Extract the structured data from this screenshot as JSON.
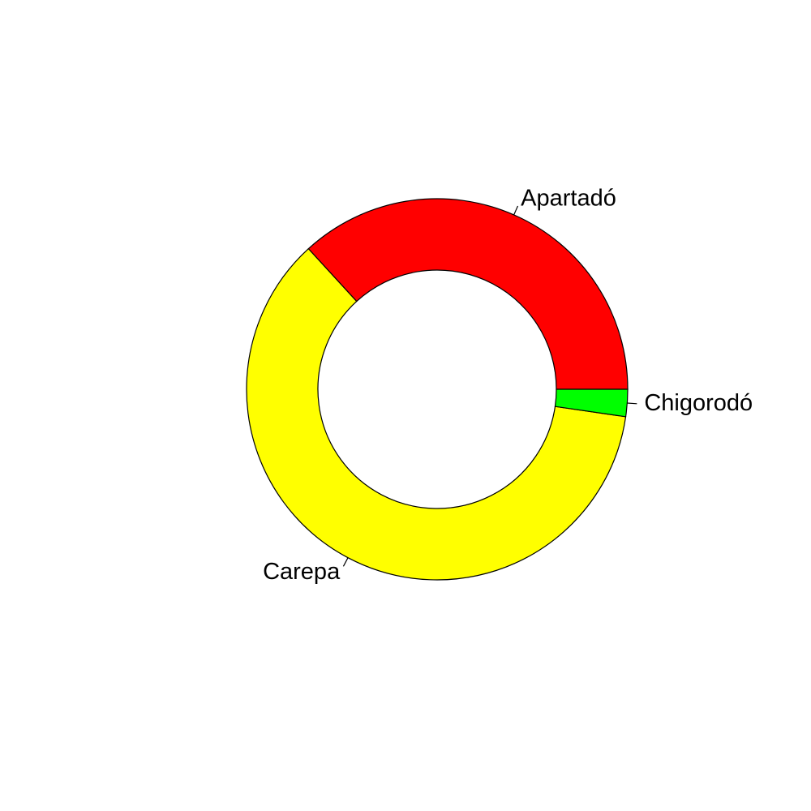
{
  "chart_data": {
    "type": "pie",
    "donut": true,
    "title": "",
    "start": "3 o'clock",
    "direction": "counterclockwise",
    "slices": [
      {
        "label": "Apartadó",
        "value": 36.8,
        "color": "#FF0000"
      },
      {
        "label": "Carepa",
        "value": 60.9,
        "color": "#FFFF00"
      },
      {
        "label": "Chigorodó",
        "value": 2.3,
        "color": "#00FF00"
      }
    ]
  }
}
